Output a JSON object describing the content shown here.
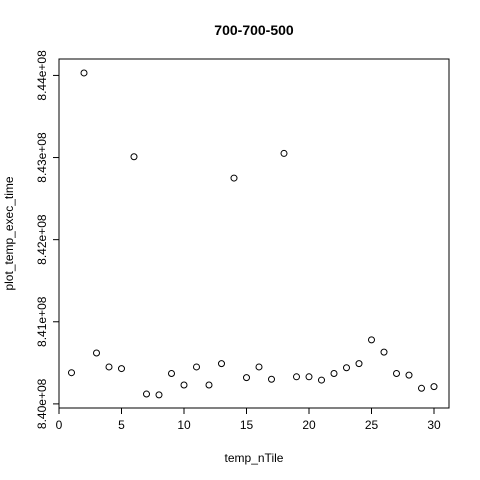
{
  "chart_data": {
    "type": "scatter",
    "title": "700-700-500",
    "xlabel": "temp_nTile",
    "ylabel": "plot_temp_exec_time",
    "x_ticks": [
      0,
      5,
      10,
      15,
      20,
      25,
      30
    ],
    "x_tick_labels": [
      "0",
      "5",
      "10",
      "15",
      "20",
      "25",
      "30"
    ],
    "y_ticks": [
      840000000,
      841000000,
      842000000,
      843000000,
      844000000
    ],
    "y_tick_labels": [
      "8.40e+08",
      "8.41e+08",
      "8.42e+08",
      "8.43e+08",
      "8.44e+08"
    ],
    "xlim": [
      0,
      31.2
    ],
    "ylim": [
      839950000,
      844200000
    ],
    "grid": false,
    "point_style": "open-circle",
    "series": [
      {
        "x": [
          1,
          2,
          3,
          4,
          5,
          6,
          7,
          8,
          9,
          10,
          11,
          12,
          13,
          14,
          15,
          16,
          17,
          18,
          19,
          20,
          21,
          22,
          23,
          24,
          25,
          26,
          27,
          28,
          29,
          30
        ],
        "y": [
          840380000,
          844030000,
          840620000,
          840450000,
          840430000,
          843010000,
          840120000,
          840110000,
          840370000,
          840230000,
          840450000,
          840230000,
          840490000,
          842750000,
          840320000,
          840450000,
          840300000,
          843050000,
          840330000,
          840330000,
          840290000,
          840370000,
          840440000,
          840490000,
          840780000,
          840630000,
          840370000,
          840350000,
          840190000,
          840210000
        ]
      }
    ]
  }
}
